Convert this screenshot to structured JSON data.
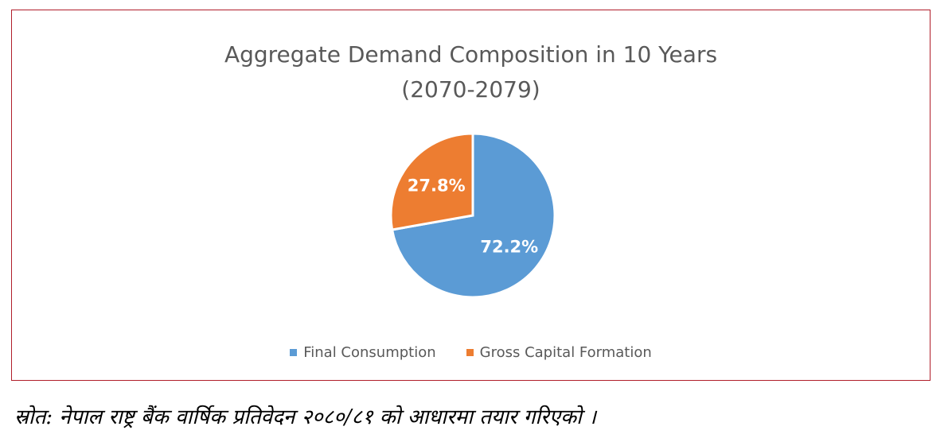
{
  "chart_data": {
    "type": "pie",
    "title": "Aggregate Demand Composition in 10 Years",
    "subtitle": "(2070-2079)",
    "categories": [
      "Final Consumption",
      "Gross Capital Formation"
    ],
    "values": [
      72.2,
      27.8
    ],
    "data_labels": [
      "72.2%",
      "27.8%"
    ],
    "colors": [
      "#5b9bd5",
      "#ed7d31"
    ],
    "legend_position": "bottom"
  },
  "footnote": {
    "source_text": "स्रोत: नेपाल राष्ट्र बैंक वार्षिक प्रतिवेदन २०८०/८१ को आधारमा तयार गरिएको ।"
  },
  "colors": {
    "border": "#b01e2a",
    "text": "#595959",
    "label_text": "#ffffff"
  }
}
